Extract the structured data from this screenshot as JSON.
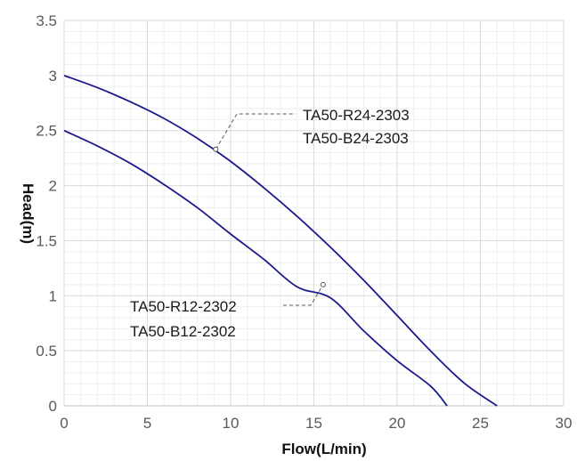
{
  "chart_data": {
    "type": "line",
    "xlabel": "Flow(L/min)",
    "ylabel": "Head(m)",
    "xlim": [
      0,
      30
    ],
    "ylim": [
      0,
      3.5
    ],
    "xticks": [
      0,
      5,
      10,
      15,
      20,
      25,
      30
    ],
    "yticks": [
      0,
      0.5,
      1,
      1.5,
      2,
      2.5,
      3,
      3.5
    ],
    "x_tick_labels": [
      "0",
      "5",
      "10",
      "15",
      "20",
      "25",
      "30"
    ],
    "y_tick_labels": [
      "0",
      "0.5",
      "1",
      "1.5",
      "2",
      "2.5",
      "3",
      "3.5"
    ],
    "grid": true,
    "colors": {
      "line": "#1a1a8c",
      "grid_major": "#d9d9d9",
      "grid_minor": "#eeeeee",
      "leader": "#555555"
    },
    "series": [
      {
        "x": [
          0,
          2,
          4,
          6,
          8,
          9,
          10,
          12,
          14,
          16,
          18,
          20,
          22,
          24,
          26
        ],
        "y": [
          3.0,
          2.89,
          2.76,
          2.61,
          2.43,
          2.32,
          2.22,
          1.98,
          1.72,
          1.44,
          1.14,
          0.82,
          0.5,
          0.21,
          0.0
        ]
      },
      {
        "x": [
          0,
          2,
          4,
          6,
          8,
          10,
          12,
          14,
          15.5,
          16,
          18,
          20,
          22,
          23
        ],
        "y": [
          2.5,
          2.36,
          2.2,
          2.01,
          1.8,
          1.56,
          1.33,
          1.08,
          1.1,
          0.98,
          0.68,
          0.41,
          0.18,
          0.0
        ]
      }
    ],
    "annotations": [
      {
        "lines": [
          "TA50-R24-2303",
          "TA50-B24-2303"
        ],
        "anchor": {
          "x": 9.0,
          "y": 2.3
        }
      },
      {
        "lines": [
          "TA50-R12-2302",
          "TA50-B12-2302"
        ],
        "anchor": {
          "x": 15.5,
          "y": 1.1
        }
      }
    ]
  }
}
